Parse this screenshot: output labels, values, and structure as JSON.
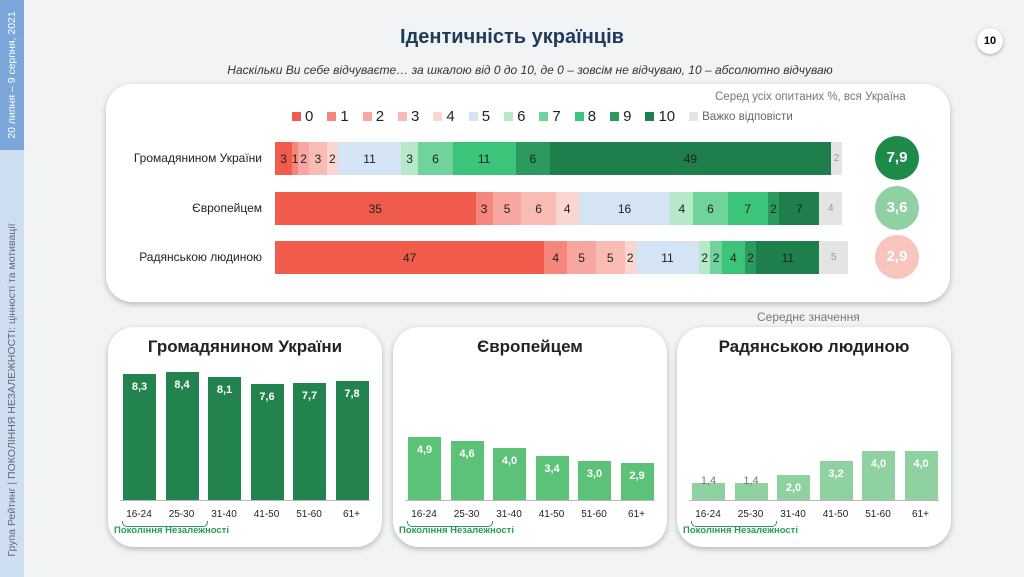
{
  "sidebar": {
    "date": "20 липня – 9 серпня, 2021",
    "footer": "Група Рейтинг | ПОКОЛІННЯ НЕЗАЛЕЖНОСТІ: цінності та мотивації"
  },
  "header": {
    "title": "Ідентичність українців",
    "subtitle": "Наскільки Ви себе відчуваєте… за шкалою від 0 до 10, де 0 – зовсім не відчуваю, 10 – абсолютно відчуваю",
    "page": "10"
  },
  "colors": {
    "0": "#f15b4b",
    "1": "#f4867b",
    "2": "#f7a7a0",
    "3": "#f9bcb5",
    "4": "#fbd6d1",
    "5": "#d5e4f5",
    "6": "#b6e8c9",
    "7": "#6fd39b",
    "8": "#3cc47a",
    "9": "#2a9a5e",
    "10": "#1f7f4c",
    "dk": "#e4e4e4"
  },
  "chart_data": [
    {
      "type": "bar",
      "orientation": "horizontal-stacked",
      "note": "Серед усіх опитаних %, вся Україна",
      "legend": [
        "0",
        "1",
        "2",
        "3",
        "4",
        "5",
        "6",
        "7",
        "8",
        "9",
        "10",
        "Важко відповісти"
      ],
      "categories": [
        "Громадянином України",
        "Європейцем",
        "Радянською людиною"
      ],
      "rows": [
        {
          "label": "Громадянином України",
          "values": [
            3,
            1,
            2,
            3,
            2,
            11,
            3,
            6,
            11,
            6,
            49,
            2
          ],
          "mean": "7,9",
          "mean_color": "#1e8a4a"
        },
        {
          "label": "Європейцем",
          "values": [
            35,
            3,
            5,
            6,
            4,
            16,
            4,
            6,
            7,
            2,
            7,
            4
          ],
          "mean": "3,6",
          "mean_color": "#8fd1a4"
        },
        {
          "label": "Радянською людиною",
          "values": [
            47,
            4,
            5,
            5,
            2,
            11,
            2,
            2,
            4,
            2,
            11,
            5
          ],
          "mean": "2,9",
          "mean_color": "#f7c4be"
        }
      ],
      "mean_label": "Середнє значення"
    },
    {
      "type": "bar",
      "title": "Громадянином України",
      "categories": [
        "16-24",
        "25-30",
        "31-40",
        "41-50",
        "51-60",
        "61+"
      ],
      "values": [
        8.3,
        8.4,
        8.1,
        7.6,
        7.7,
        7.8
      ],
      "labels": [
        "8,3",
        "8,4",
        "8,1",
        "7,6",
        "7,7",
        "7,8"
      ],
      "color": "#23834f",
      "group_label": "Покоління Незалежності"
    },
    {
      "type": "bar",
      "title": "Європейцем",
      "categories": [
        "16-24",
        "25-30",
        "31-40",
        "41-50",
        "51-60",
        "61+"
      ],
      "values": [
        4.9,
        4.6,
        4.0,
        3.4,
        3.0,
        2.9
      ],
      "labels": [
        "4,9",
        "4,6",
        "4,0",
        "3,4",
        "3,0",
        "2,9"
      ],
      "color": "#5cc277",
      "group_label": "Покоління Незалежності"
    },
    {
      "type": "bar",
      "title": "Радянською людиною",
      "categories": [
        "16-24",
        "25-30",
        "31-40",
        "41-50",
        "51-60",
        "61+"
      ],
      "values": [
        1.4,
        1.4,
        2.0,
        3.2,
        4.0,
        4.0
      ],
      "labels": [
        "1,4",
        "1,4",
        "2,0",
        "3,2",
        "4,0",
        "4,0"
      ],
      "color": "#8fd1a0",
      "group_label": "Покоління Незалежності"
    }
  ]
}
